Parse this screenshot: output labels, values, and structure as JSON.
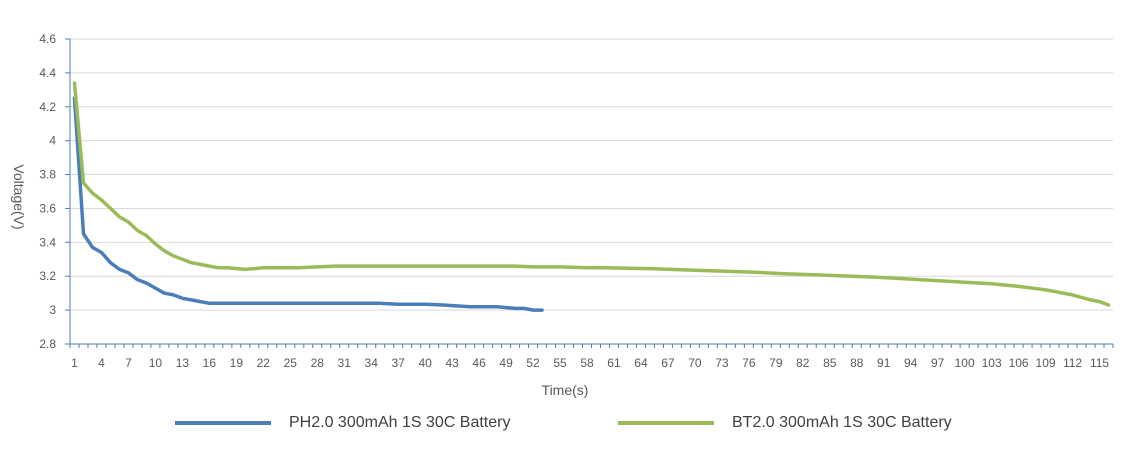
{
  "chart_data": {
    "type": "line",
    "title": "",
    "xlabel": "Time(s)",
    "ylabel": "Voltage(V)",
    "ylim": [
      2.8,
      4.6
    ],
    "yticks": [
      2.8,
      3,
      3.2,
      3.4,
      3.6,
      3.8,
      4,
      4.2,
      4.4,
      4.6
    ],
    "yticklabels": [
      "2.8",
      "3",
      "3.2",
      "3.4",
      "3.6",
      "3.8",
      "4",
      "4.2",
      "4.4",
      "4.6"
    ],
    "xlim": [
      1,
      116
    ],
    "xticks": [
      1,
      4,
      7,
      10,
      13,
      16,
      19,
      22,
      25,
      28,
      31,
      34,
      37,
      40,
      43,
      46,
      49,
      52,
      55,
      58,
      61,
      64,
      67,
      70,
      73,
      76,
      79,
      82,
      85,
      88,
      91,
      94,
      97,
      100,
      103,
      106,
      109,
      112,
      115
    ],
    "grid": "horizontal",
    "legend_position": "bottom",
    "series": [
      {
        "name": "PH2.0 300mAh 1S 30C Battery",
        "color": "#4a7ebb",
        "x": [
          1,
          2,
          3,
          4,
          5,
          6,
          7,
          8,
          9,
          10,
          11,
          12,
          13,
          14,
          15,
          16,
          17,
          18,
          20,
          25,
          30,
          35,
          37,
          40,
          42,
          45,
          48,
          50,
          51,
          52,
          53
        ],
        "y": [
          4.25,
          3.45,
          3.37,
          3.34,
          3.28,
          3.24,
          3.22,
          3.18,
          3.16,
          3.13,
          3.1,
          3.09,
          3.07,
          3.06,
          3.05,
          3.04,
          3.04,
          3.04,
          3.04,
          3.04,
          3.04,
          3.04,
          3.035,
          3.035,
          3.03,
          3.02,
          3.02,
          3.01,
          3.01,
          3.0,
          3.0
        ]
      },
      {
        "name": "BT2.0 300mAh 1S 30C Battery",
        "color": "#9bbb59",
        "x": [
          1,
          2,
          3,
          4,
          5,
          6,
          7,
          8,
          9,
          10,
          11,
          12,
          13,
          14,
          15,
          16,
          17,
          18,
          20,
          22,
          24,
          26,
          28,
          30,
          35,
          40,
          45,
          50,
          52,
          55,
          58,
          60,
          65,
          70,
          73,
          76,
          80,
          85,
          90,
          95,
          100,
          103,
          106,
          109,
          112,
          114,
          115,
          116
        ],
        "y": [
          4.34,
          3.75,
          3.69,
          3.65,
          3.6,
          3.55,
          3.52,
          3.47,
          3.44,
          3.39,
          3.35,
          3.32,
          3.3,
          3.28,
          3.27,
          3.26,
          3.25,
          3.25,
          3.24,
          3.25,
          3.25,
          3.25,
          3.255,
          3.26,
          3.26,
          3.26,
          3.26,
          3.26,
          3.255,
          3.255,
          3.25,
          3.25,
          3.245,
          3.235,
          3.23,
          3.225,
          3.215,
          3.205,
          3.195,
          3.18,
          3.165,
          3.155,
          3.14,
          3.12,
          3.09,
          3.06,
          3.05,
          3.03
        ]
      }
    ]
  }
}
